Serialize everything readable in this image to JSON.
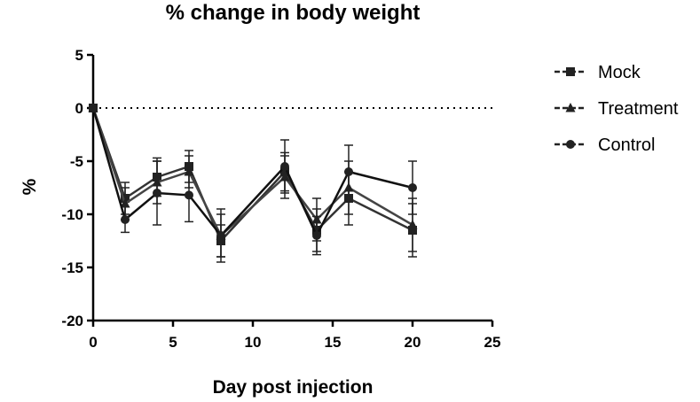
{
  "chart_data": {
    "type": "line",
    "title": "% change in body weight",
    "xlabel": "Day post injection",
    "ylabel": "%",
    "xlim": [
      0,
      25
    ],
    "ylim": [
      -20,
      5
    ],
    "x_ticks": [
      0,
      5,
      10,
      15,
      20,
      25
    ],
    "y_ticks": [
      5,
      0,
      -5,
      -10,
      -15,
      -20
    ],
    "reference_line": {
      "y": 0,
      "style": "dotted"
    },
    "legend_position": "right",
    "x": [
      0,
      2,
      4,
      6,
      8,
      12,
      14,
      16,
      20
    ],
    "series": [
      {
        "name": "Mock",
        "marker": "square",
        "values": [
          0,
          -8.5,
          -6.5,
          -5.5,
          -12.5,
          -6.0,
          -11.5,
          -8.5,
          -11.5
        ],
        "errors": [
          0,
          1.5,
          1.8,
          1.5,
          1.5,
          1.8,
          2.0,
          2.5,
          2.5
        ]
      },
      {
        "name": "Treatment",
        "marker": "triangle",
        "values": [
          0,
          -9.0,
          -7.0,
          -6.0,
          -12.0,
          -6.5,
          -10.5,
          -7.5,
          -11.0
        ],
        "errors": [
          0,
          1.5,
          2.0,
          1.5,
          2.0,
          2.0,
          2.0,
          2.5,
          2.5
        ]
      },
      {
        "name": "Control",
        "marker": "circle",
        "values": [
          0,
          -10.5,
          -8.0,
          -8.2,
          -12.0,
          -5.5,
          -12.0,
          -6.0,
          -7.5
        ],
        "errors": [
          0,
          1.2,
          3.0,
          2.5,
          2.5,
          2.5,
          1.8,
          2.5,
          2.5
        ]
      }
    ]
  }
}
